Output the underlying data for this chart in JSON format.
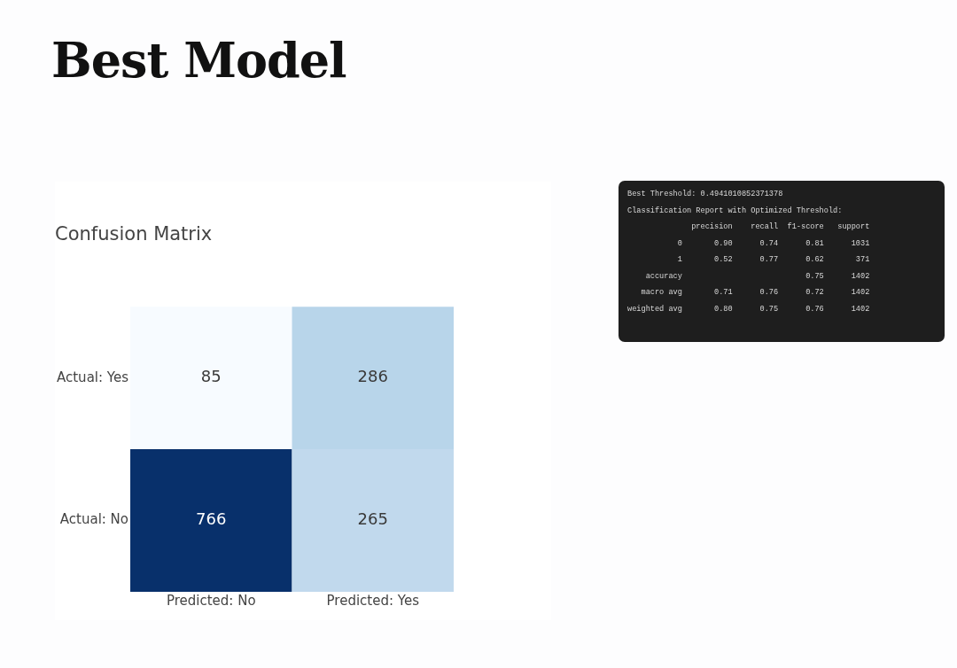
{
  "chart_data": [
    {
      "type": "other",
      "title": "Best Model"
    },
    {
      "type": "heatmap",
      "title": "Confusion Matrix",
      "categories": [
        "Predicted: No",
        "Predicted: Yes"
      ],
      "y_categories": [
        "Actual: Yes",
        "Actual: No"
      ],
      "cells": [
        [
          85,
          286
        ],
        [
          766,
          265
        ]
      ],
      "data_labels": true,
      "grid": false,
      "legend": false
    },
    {
      "type": "other",
      "annotations": [
        "Best Threshold: 0.4941010852371378",
        "Classification Report with Optimized Threshold:",
        "              precision    recall  f1-score   support",
        "           0       0.90      0.74      0.81      1031",
        "           1       0.52      0.77      0.62       371",
        "    accuracy                           0.75      1402",
        "   macro avg       0.71      0.76      0.72      1402",
        "weighted avg       0.80      0.75      0.76      1402"
      ]
    }
  ]
}
